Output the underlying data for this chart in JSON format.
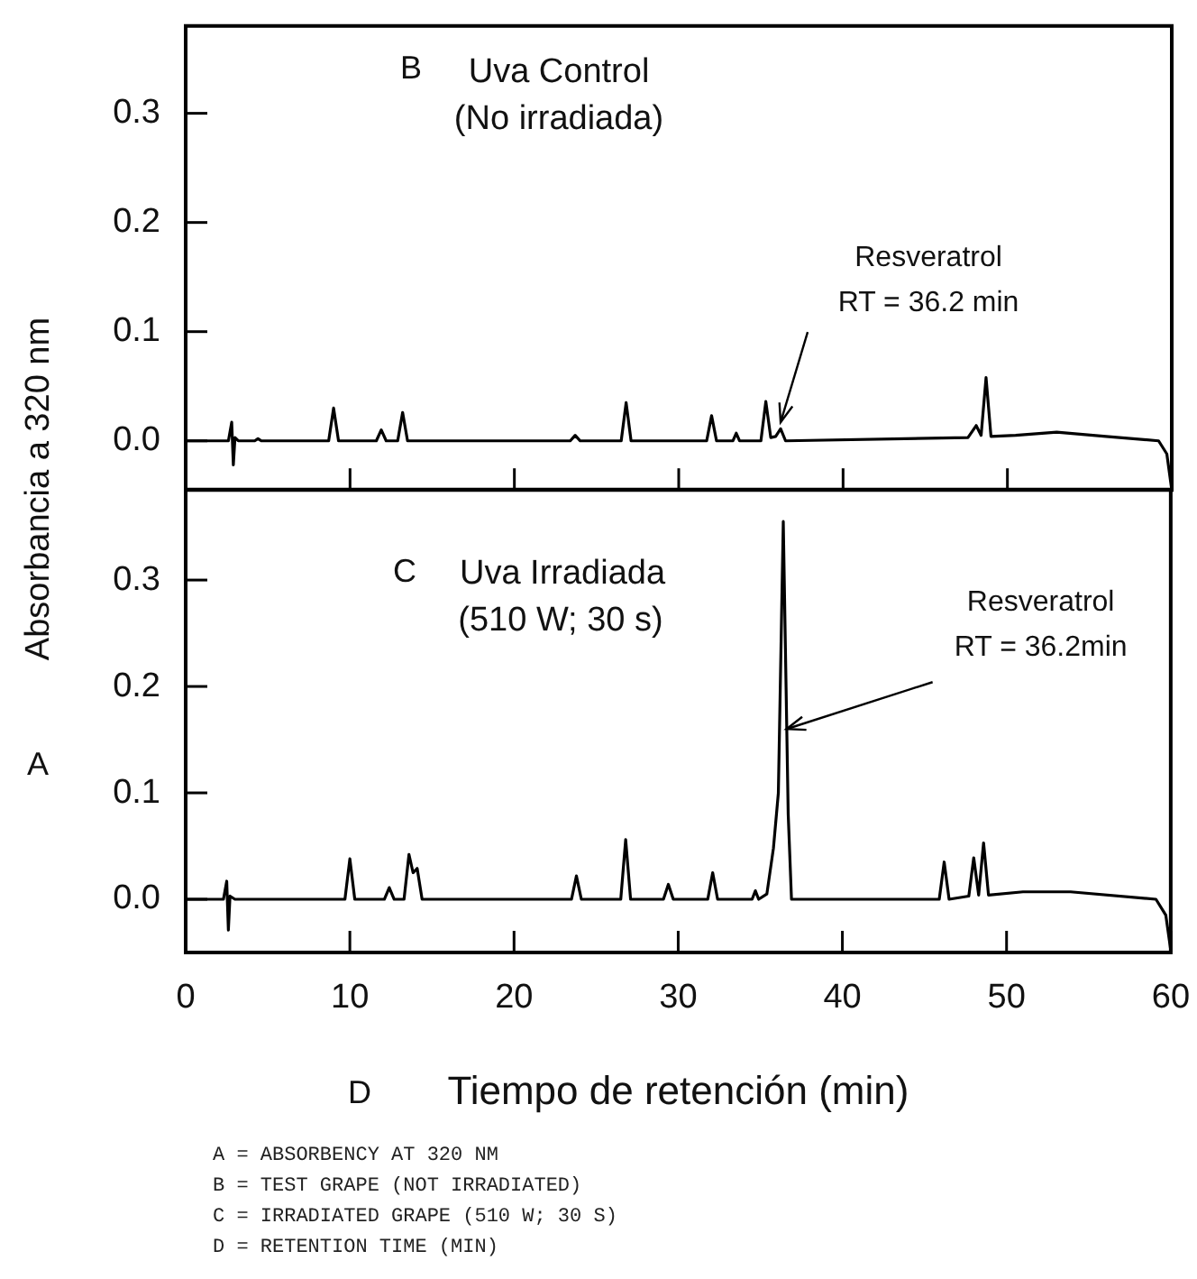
{
  "chart_data": [
    {
      "type": "line",
      "ylabel": "Absorbancia a 320 nm",
      "xlim": [
        0,
        60
      ],
      "ylim": [
        -0.045,
        0.38
      ],
      "xticks": [
        0,
        10,
        20,
        30,
        40,
        50,
        60
      ],
      "yticks": [
        {
          "value": 0,
          "label": "0.0"
        },
        {
          "value": 0.1,
          "label": "0.1"
        },
        {
          "value": 0.2,
          "label": "0.2"
        },
        {
          "value": 0.3,
          "label": "0.3"
        }
      ],
      "tick_labels": "y",
      "grid": false,
      "legend": false,
      "marker": "none",
      "line_style": "solid",
      "annotations": [
        "B",
        "Uva Control",
        "(No irradiada)",
        {
          "text": "Resveratrol\nRT = 36.2 min",
          "x": 36.2,
          "y": 0.017
        }
      ],
      "series": [
        {
          "color": "#000000",
          "x": [
            0,
            2.6,
            2.8,
            2.9,
            3.0,
            3.2,
            4.2,
            4.4,
            4.6,
            8.7,
            9.0,
            9.3,
            11.6,
            11.9,
            12.2,
            12.9,
            13.2,
            13.5,
            23.4,
            23.7,
            24.0,
            26.5,
            26.8,
            27.1,
            31.7,
            32.0,
            32.3,
            33.3,
            33.5,
            33.7,
            35.0,
            35.3,
            35.6,
            35.9,
            36.2,
            36.5,
            47.6,
            48.1,
            48.4,
            48.7,
            49.0,
            50.5,
            53.0,
            56.0,
            59.2,
            59.7,
            60
          ],
          "values": [
            0,
            0,
            0.017,
            -0.022,
            0.003,
            0,
            0,
            0.002,
            0,
            0,
            0.03,
            0,
            0,
            0.01,
            0,
            0,
            0.026,
            0,
            0,
            0.005,
            0,
            0,
            0.035,
            0,
            0,
            0.023,
            0,
            0,
            0.007,
            0,
            0,
            0.036,
            0.003,
            0.004,
            0.011,
            0,
            0.003,
            0.014,
            0.005,
            0.058,
            0.004,
            0.005,
            0.008,
            0.004,
            0,
            -0.012,
            -0.045
          ]
        }
      ]
    },
    {
      "type": "line",
      "xlabel": "Tiempo de retención (min)",
      "xlim": [
        0,
        60
      ],
      "ylim": [
        -0.05,
        0.385
      ],
      "xticks": [
        0,
        10,
        20,
        30,
        40,
        50,
        60
      ],
      "yticks": [
        {
          "value": 0,
          "label": "0.0"
        },
        {
          "value": 0.1,
          "label": "0.1"
        },
        {
          "value": 0.2,
          "label": "0.2"
        },
        {
          "value": 0.3,
          "label": "0.3"
        }
      ],
      "grid": false,
      "legend": false,
      "marker": "none",
      "line_style": "solid",
      "annotations": [
        "C",
        "Uva Irradiada",
        "(510 W; 30 s)",
        {
          "text": "Resveratrol\nRT = 36.2min",
          "x": 36.6,
          "y": 0.16
        },
        "A",
        "D",
        "A = ABSORBENCY AT 320 NM",
        "B = TEST GRAPE (NOT IRRADIATED)",
        "C = IRRADIATED GRAPE (510 W; 30 S)",
        "D = RETENTION TIME (MIN)"
      ],
      "series": [
        {
          "color": "#000000",
          "x": [
            0,
            2.3,
            2.5,
            2.6,
            2.7,
            3.0,
            9.7,
            10.0,
            10.3,
            12.1,
            12.4,
            12.7,
            13.3,
            13.6,
            13.85,
            14.1,
            14.4,
            23.5,
            23.8,
            24.1,
            26.5,
            26.8,
            27.1,
            29.1,
            29.4,
            29.7,
            31.8,
            32.1,
            32.4,
            34.5,
            34.7,
            34.9,
            35.4,
            35.8,
            36.1,
            36.4,
            36.7,
            36.9,
            45.9,
            46.2,
            46.5,
            47.7,
            48.0,
            48.3,
            48.6,
            48.9,
            51.0,
            53.9,
            59.1,
            59.7,
            60
          ],
          "values": [
            0,
            0,
            0.017,
            -0.029,
            0.003,
            0,
            0,
            0.038,
            0,
            0,
            0.011,
            0,
            0,
            0.042,
            0.025,
            0.029,
            0,
            0,
            0.022,
            0,
            0,
            0.056,
            0,
            0,
            0.014,
            0,
            0,
            0.025,
            0,
            0,
            0.008,
            0,
            0.005,
            0.048,
            0.1,
            0.355,
            0.08,
            0,
            0,
            0.035,
            0,
            0.003,
            0.039,
            0.004,
            0.053,
            0.004,
            0.007,
            0.007,
            0,
            -0.015,
            -0.048
          ]
        }
      ]
    }
  ]
}
